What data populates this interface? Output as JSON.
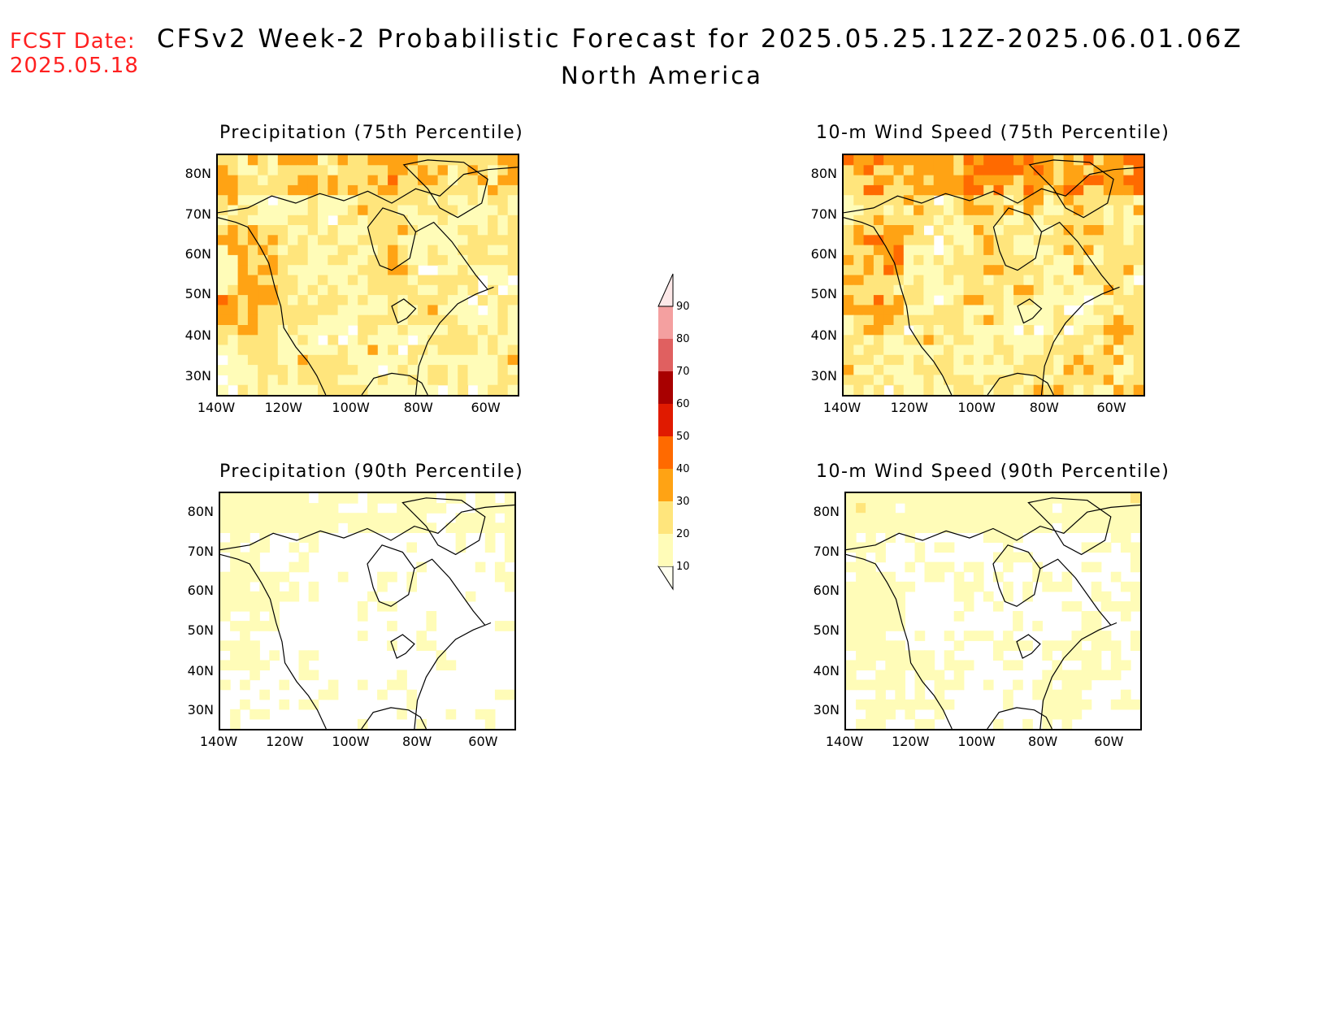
{
  "header": {
    "fcst_label": "FCST Date:",
    "fcst_date": "2025.05.18",
    "title": "CFSv2 Week-2 Probabilistic Forecast for 2025.05.25.12Z-2025.06.01.06Z",
    "subtitle": "North America"
  },
  "panels": [
    {
      "id": "precip75",
      "title": "Precipitation (75th Percentile)",
      "intensity": 0.85
    },
    {
      "id": "wind75",
      "title": "10-m Wind Speed (75th Percentile)",
      "intensity": 0.9
    },
    {
      "id": "precip90",
      "title": "Precipitation (90th Percentile)",
      "intensity": 0.35
    },
    {
      "id": "wind90",
      "title": "10-m Wind Speed (90th Percentile)",
      "intensity": 0.4
    }
  ],
  "axes": {
    "lat_labels": [
      "80N",
      "70N",
      "60N",
      "50N",
      "40N",
      "30N"
    ],
    "lon_labels": [
      "140W",
      "120W",
      "100W",
      "80W",
      "60W"
    ]
  },
  "colorbar": {
    "levels": [
      "10",
      "20",
      "30",
      "40",
      "50",
      "60",
      "70",
      "80",
      "90"
    ],
    "colors": [
      "#fffcb8",
      "#ffe57c",
      "#ffa314",
      "#ff6a00",
      "#e01a00",
      "#a80000",
      "#e06060",
      "#f4a0a0",
      "#fde8e8"
    ]
  }
}
